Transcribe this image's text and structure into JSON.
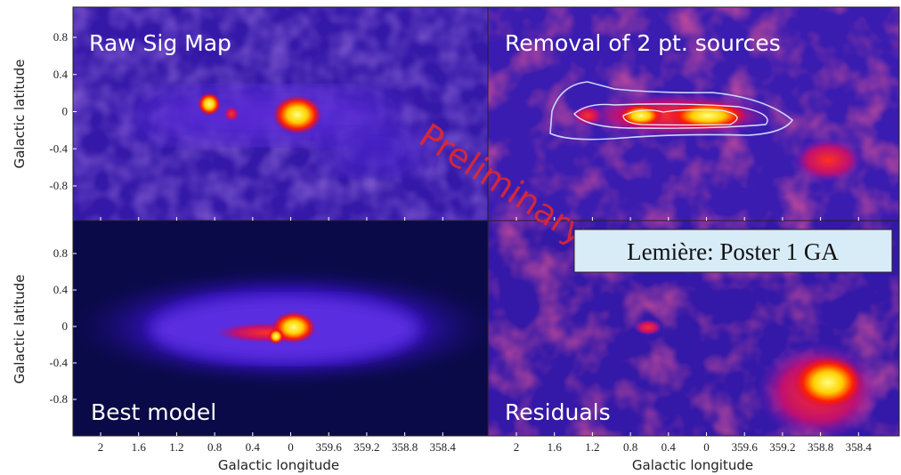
{
  "panels": [
    {
      "label": "Raw Sig Map"
    },
    {
      "label": "Removal of 2 pt. sources"
    },
    {
      "label": "Best model"
    },
    {
      "label": "Residuals"
    }
  ],
  "ylabel": "Galactic latitude",
  "xlabel": "Galactic longitude",
  "yticks": [
    "0.8",
    "0.4",
    "0",
    "-0.4",
    "-0.8"
  ],
  "xticks": [
    "2",
    "1.6",
    "1.2",
    "0.8",
    "0.4",
    "0",
    "359.6",
    "359.2",
    "358.8",
    "358.4"
  ],
  "watermark": "Preliminary",
  "note": "Lemière: Poster 1 GA"
}
